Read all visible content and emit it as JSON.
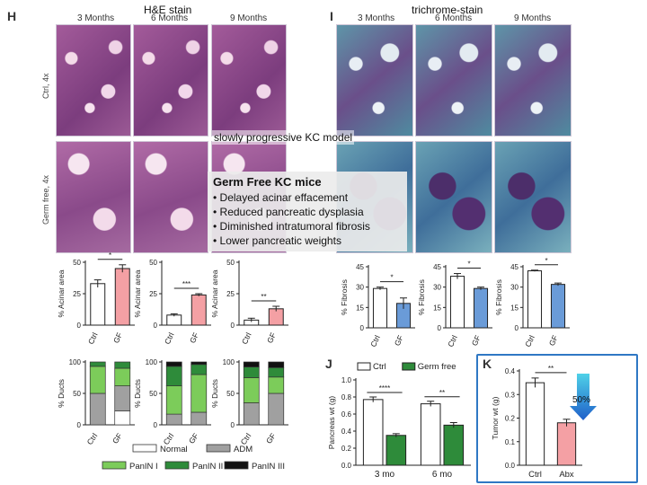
{
  "panels": {
    "H": {
      "letter": "H",
      "stain_title": "H&E stain",
      "months": [
        "3 Months",
        "6 Months",
        "9 Months"
      ]
    },
    "I": {
      "letter": "I",
      "stain_title": "trichrome-stain",
      "months": [
        "3 Months",
        "6 Months",
        "9 Months"
      ]
    },
    "J": {
      "letter": "J"
    },
    "K": {
      "letter": "K"
    }
  },
  "row_labels": {
    "ctrl": "Ctrl, 4x",
    "gf": "Germ free, 4x"
  },
  "model_title": "slowly progressive KC model",
  "callout": {
    "heading": "Germ Free KC mice",
    "items": [
      "• Delayed acinar effacement",
      "• Reduced pancreatic dysplasia",
      "• Diminished intratumoral fibrosis",
      "• Lower pancreatic weights"
    ]
  },
  "arrow_label": "50%",
  "colors": {
    "ctrl": "#ffffff",
    "gf_red": "#f4a0a4",
    "gf_blue": "#6a9bd8",
    "green": "#2e8b3a",
    "normal": "#ffffff",
    "adm": "#a0a0a0",
    "panin1": "#7ccc5a",
    "panin2": "#2e8b3a",
    "panin3": "#111111",
    "k_border": "#2f78c4"
  },
  "chart_data": [
    {
      "type": "bar",
      "id": "acinar-3mo",
      "ylabel": "% Acinar area",
      "categories": [
        "Ctrl",
        "GF"
      ],
      "values": [
        33,
        45
      ],
      "errors": [
        3,
        3
      ],
      "ylim": [
        0,
        50
      ],
      "yticks": [
        0,
        25,
        50
      ],
      "sig": "*"
    },
    {
      "type": "bar",
      "id": "acinar-6mo",
      "ylabel": "% Acinar area",
      "categories": [
        "Ctrl",
        "GF"
      ],
      "values": [
        8,
        24
      ],
      "errors": [
        1,
        1
      ],
      "ylim": [
        0,
        50
      ],
      "yticks": [
        0,
        25,
        50
      ],
      "sig": "***"
    },
    {
      "type": "bar",
      "id": "acinar-9mo",
      "ylabel": "% Acinar area",
      "categories": [
        "Ctrl",
        "GF"
      ],
      "values": [
        4,
        13
      ],
      "errors": [
        1.5,
        2
      ],
      "ylim": [
        0,
        50
      ],
      "yticks": [
        0,
        25,
        50
      ],
      "sig": "**"
    },
    {
      "type": "bar",
      "id": "fibrosis-3mo",
      "ylabel": "% Fibrosis",
      "categories": [
        "Ctrl",
        "GF"
      ],
      "values": [
        29,
        18
      ],
      "errors": [
        1,
        4
      ],
      "ylim": [
        0,
        45
      ],
      "yticks": [
        0,
        15,
        30,
        45
      ],
      "sig": "*"
    },
    {
      "type": "bar",
      "id": "fibrosis-6mo",
      "ylabel": "% Fibrosis",
      "categories": [
        "Ctrl",
        "GF"
      ],
      "values": [
        38,
        29
      ],
      "errors": [
        2,
        1
      ],
      "ylim": [
        0,
        45
      ],
      "yticks": [
        0,
        15,
        30,
        45
      ],
      "sig": "*"
    },
    {
      "type": "bar",
      "id": "fibrosis-9mo",
      "ylabel": "% Fibrosis",
      "categories": [
        "Ctrl",
        "GF"
      ],
      "values": [
        42,
        32
      ],
      "errors": [
        0.5,
        1
      ],
      "ylim": [
        0,
        45
      ],
      "yticks": [
        0,
        15,
        30,
        45
      ],
      "sig": "*"
    },
    {
      "type": "bar",
      "id": "ducts-3mo",
      "stacked": true,
      "ylabel": "% Ducts",
      "categories": [
        "Ctrl",
        "GF"
      ],
      "ylim": [
        0,
        100
      ],
      "yticks": [
        0,
        50,
        100
      ],
      "series": [
        {
          "name": "Normal",
          "values": [
            0,
            22
          ]
        },
        {
          "name": "ADM",
          "values": [
            50,
            40
          ]
        },
        {
          "name": "PanIN I",
          "values": [
            43,
            28
          ]
        },
        {
          "name": "PanIN II",
          "values": [
            7,
            10
          ]
        },
        {
          "name": "PanIN III",
          "values": [
            0,
            0
          ]
        }
      ]
    },
    {
      "type": "bar",
      "id": "ducts-6mo",
      "stacked": true,
      "ylabel": "% Ducts",
      "categories": [
        "Ctrl",
        "GF"
      ],
      "ylim": [
        0,
        100
      ],
      "yticks": [
        0,
        50,
        100
      ],
      "series": [
        {
          "name": "Normal",
          "values": [
            0,
            0
          ]
        },
        {
          "name": "ADM",
          "values": [
            17,
            20
          ]
        },
        {
          "name": "PanIN I",
          "values": [
            45,
            60
          ]
        },
        {
          "name": "PanIN II",
          "values": [
            31,
            16
          ]
        },
        {
          "name": "PanIN III",
          "values": [
            7,
            4
          ]
        }
      ]
    },
    {
      "type": "bar",
      "id": "ducts-9mo",
      "stacked": true,
      "ylabel": "% Ducts",
      "categories": [
        "Ctrl",
        "GF"
      ],
      "ylim": [
        0,
        100
      ],
      "yticks": [
        0,
        50,
        100
      ],
      "series": [
        {
          "name": "Normal",
          "values": [
            0,
            0
          ]
        },
        {
          "name": "ADM",
          "values": [
            35,
            50
          ]
        },
        {
          "name": "PanIN I",
          "values": [
            40,
            26
          ]
        },
        {
          "name": "PanIN II",
          "values": [
            17,
            15
          ]
        },
        {
          "name": "PanIN III",
          "values": [
            8,
            9
          ]
        }
      ]
    },
    {
      "type": "bar",
      "id": "pancreas-weight",
      "ylabel": "Pancreas wt (g)",
      "categories": [
        "3 mo",
        "6 mo"
      ],
      "ylim": [
        0,
        1.0
      ],
      "yticks": [
        0.0,
        0.2,
        0.4,
        0.6,
        0.8,
        1.0
      ],
      "legend": "top",
      "series": [
        {
          "name": "Ctrl",
          "values": [
            0.77,
            0.72
          ],
          "errors": [
            0.03,
            0.03
          ]
        },
        {
          "name": "Germ free",
          "values": [
            0.35,
            0.47
          ],
          "errors": [
            0.02,
            0.03
          ]
        }
      ],
      "sig": [
        "****",
        "**"
      ]
    },
    {
      "type": "bar",
      "id": "tumor-weight",
      "ylabel": "Tumor wt (g)",
      "categories": [
        "Ctrl",
        "Abx"
      ],
      "values": [
        0.35,
        0.18
      ],
      "errors": [
        0.02,
        0.015
      ],
      "ylim": [
        0,
        0.4
      ],
      "yticks": [
        0.0,
        0.1,
        0.2,
        0.3,
        0.4
      ],
      "sig": "**"
    }
  ],
  "legend_ducts": [
    "Normal",
    "ADM",
    "PanIN I",
    "PanIN II",
    "PanIN III"
  ]
}
